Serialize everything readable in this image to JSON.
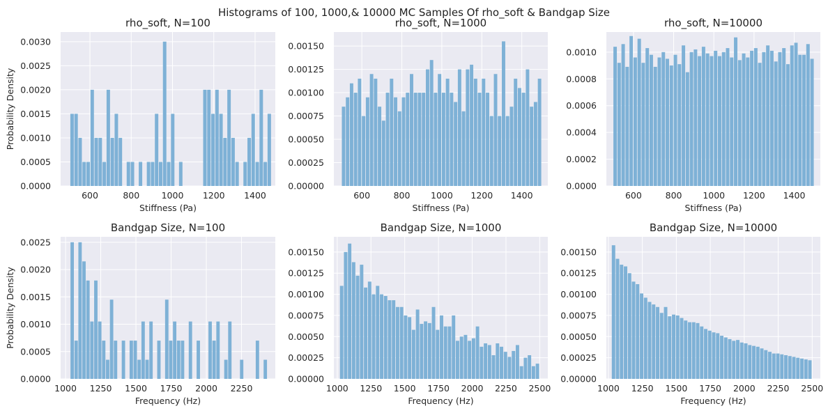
{
  "figure": {
    "title": "Histograms of 100, 1000,& 10000 MC Samples Of rho_soft & Bandgap Size",
    "background": "#ffffff",
    "axes_background": "#eaeaf2",
    "grid_color": "#ffffff",
    "bar_color": "#7eb1d6"
  },
  "chart_data": [
    {
      "type": "bar",
      "title": "rho_soft, N=100",
      "xlabel": "Stiffness (Pa)",
      "ylabel": "Probability Density",
      "xlim": [
        458,
        1498
      ],
      "ylim": [
        0,
        0.0032
      ],
      "xticks": [
        600,
        800,
        1000,
        1200,
        1400
      ],
      "yticks": [
        0,
        0.0005,
        0.001,
        0.0015,
        0.002,
        0.0025,
        0.003
      ],
      "ytick_labels": [
        "0.0000",
        "0.0005",
        "0.0010",
        "0.0015",
        "0.0020",
        "0.0025",
        "0.0030"
      ],
      "grid": true,
      "bin_start": 505,
      "bin_width": 19.5,
      "values": [
        0.0015,
        0.0015,
        0.001,
        0.0005,
        0.0005,
        0.002,
        0.001,
        0.001,
        0.0005,
        0.002,
        0.001,
        0.0015,
        0.001,
        0,
        0.0005,
        0.0005,
        0,
        0.0005,
        0,
        0.0005,
        0.0005,
        0.0015,
        0.0005,
        0.003,
        0.0005,
        0.0015,
        0,
        0.0005,
        0,
        0,
        0,
        0,
        0,
        0.002,
        0.002,
        0.0015,
        0.002,
        0.0015,
        0.001,
        0.002,
        0.001,
        0.0005,
        0,
        0.0005,
        0.001,
        0.0015,
        0.0005,
        0.002,
        0.0005,
        0.0015
      ]
    },
    {
      "type": "bar",
      "title": "rho_soft, N=1000",
      "xlabel": "Stiffness (Pa)",
      "ylabel": "",
      "xlim": [
        460,
        1530
      ],
      "ylim": [
        0,
        0.00165
      ],
      "xticks": [
        600,
        800,
        1000,
        1200,
        1400
      ],
      "yticks": [
        0,
        0.00025,
        0.0005,
        0.00075,
        0.001,
        0.00125,
        0.0015
      ],
      "ytick_labels": [
        "0.00000",
        "0.00025",
        "0.00050",
        "0.00075",
        "0.00100",
        "0.00125",
        "0.00150"
      ],
      "grid": true,
      "bin_start": 500,
      "bin_width": 20,
      "values": [
        0.00085,
        0.00095,
        0.0011,
        0.001,
        0.00115,
        0.00075,
        0.00095,
        0.0012,
        0.00115,
        0.00085,
        0.0007,
        0.001,
        0.00115,
        0.00095,
        0.0008,
        0.00095,
        0.001,
        0.0012,
        0.001,
        0.001,
        0.001,
        0.00125,
        0.00135,
        0.001,
        0.0012,
        0.001,
        0.00115,
        0.001,
        0.0009,
        0.00125,
        0.0008,
        0.00125,
        0.0013,
        0.00115,
        0.001,
        0.00115,
        0.001,
        0.00075,
        0.0012,
        0.00075,
        0.00155,
        0.00075,
        0.00085,
        0.00115,
        0.00105,
        0.001,
        0.00125,
        0.00085,
        0.0009,
        0.00115
      ]
    },
    {
      "type": "bar",
      "title": "rho_soft, N=10000",
      "xlabel": "Stiffness (Pa)",
      "ylabel": "",
      "xlim": [
        465,
        1530
      ],
      "ylim": [
        0,
        0.00115
      ],
      "xticks": [
        600,
        800,
        1000,
        1200,
        1400
      ],
      "yticks": [
        0,
        0.0002,
        0.0004,
        0.0006,
        0.0008,
        0.001
      ],
      "ytick_labels": [
        "0.0000",
        "0.0002",
        "0.0004",
        "0.0006",
        "0.0008",
        "0.0010"
      ],
      "grid": true,
      "bin_start": 500,
      "bin_width": 20,
      "values": [
        0.00104,
        0.00092,
        0.00106,
        0.00089,
        0.00112,
        0.00096,
        0.0011,
        0.00092,
        0.00103,
        0.00098,
        0.00089,
        0.00096,
        0.001,
        0.00095,
        0.0009,
        0.00098,
        0.00091,
        0.00105,
        0.00085,
        0.001,
        0.00102,
        0.00097,
        0.00104,
        0.00099,
        0.00097,
        0.00101,
        0.00097,
        0.001,
        0.00103,
        0.00096,
        0.00111,
        0.00094,
        0.00099,
        0.00096,
        0.00101,
        0.00103,
        0.00092,
        0.001,
        0.00105,
        0.00101,
        0.00093,
        0.001,
        0.00103,
        0.00091,
        0.00105,
        0.00107,
        0.00098,
        0.00098,
        0.00106,
        0.00095
      ]
    },
    {
      "type": "bar",
      "title": "Bandgap Size, N=100",
      "xlabel": "Frequency (Hz)",
      "ylabel": "Probability Density",
      "xlim": [
        965,
        2490
      ],
      "ylim": [
        0,
        0.0026
      ],
      "xticks": [
        1000,
        1250,
        1500,
        1750,
        2000,
        2250
      ],
      "yticks": [
        0,
        0.0005,
        0.001,
        0.0015,
        0.002,
        0.0025
      ],
      "ytick_labels": [
        "0.0000",
        "0.0005",
        "0.0010",
        "0.0015",
        "0.0020",
        "0.0025"
      ],
      "grid": true,
      "bin_start": 1035,
      "bin_width": 28,
      "values": [
        0.0025,
        0.0007,
        0.0025,
        0.00215,
        0.0018,
        0.00105,
        0.0018,
        0.00105,
        0.0007,
        0.00035,
        0.00145,
        0.0007,
        0,
        0.0007,
        0,
        0.0007,
        0.0007,
        0.00035,
        0.00105,
        0.00035,
        0.00105,
        0,
        0.0007,
        0,
        0.00145,
        0.0007,
        0.00105,
        0.0007,
        0.0007,
        0,
        0.00105,
        0,
        0.0007,
        0,
        0,
        0.00105,
        0.0007,
        0.00105,
        0,
        0.00035,
        0.00105,
        0,
        0,
        0.00035,
        0,
        0,
        0,
        0.0007,
        0,
        0.00035
      ]
    },
    {
      "type": "bar",
      "title": "Bandgap Size, N=1000",
      "xlabel": "Frequency (Hz)",
      "ylabel": "",
      "xlim": [
        975,
        2560
      ],
      "ylim": [
        0,
        0.00168
      ],
      "xticks": [
        1000,
        1250,
        1500,
        1750,
        2000,
        2250,
        2500
      ],
      "yticks": [
        0,
        0.00025,
        0.0005,
        0.00075,
        0.001,
        0.00125,
        0.0015
      ],
      "ytick_labels": [
        "0.00000",
        "0.00025",
        "0.00050",
        "0.00075",
        "0.00100",
        "0.00125",
        "0.00150"
      ],
      "grid": true,
      "bin_start": 1020,
      "bin_width": 29.6,
      "values": [
        0.0011,
        0.0015,
        0.0016,
        0.00138,
        0.00122,
        0.00135,
        0.00108,
        0.00115,
        0.001,
        0.0011,
        0.001,
        0.00098,
        0.00093,
        0.00093,
        0.00085,
        0.00085,
        0.00075,
        0.00073,
        0.00058,
        0.00082,
        0.00065,
        0.00068,
        0.00066,
        0.00085,
        0.00058,
        0.00075,
        0.00062,
        0.00062,
        0.00075,
        0.00045,
        0.0005,
        0.00052,
        0.00045,
        0.00048,
        0.00062,
        0.00038,
        0.00042,
        0.0004,
        0.00028,
        0.00042,
        0.00038,
        0.00032,
        0.00026,
        0.00033,
        0.0004,
        0.00015,
        0.00025,
        0.00028,
        0.00015,
        0.00018
      ]
    },
    {
      "type": "bar",
      "title": "Bandgap Size, N=10000",
      "xlabel": "Frequency (Hz)",
      "ylabel": "",
      "xlim": [
        985,
        2560
      ],
      "ylim": [
        0,
        0.00168
      ],
      "xticks": [
        1000,
        1250,
        1500,
        1750,
        2000,
        2250,
        2500
      ],
      "yticks": [
        0,
        0.00025,
        0.0005,
        0.00075,
        0.001,
        0.00125,
        0.0015
      ],
      "ytick_labels": [
        "0.00000",
        "0.00025",
        "0.00050",
        "0.00075",
        "0.00100",
        "0.00125",
        "0.00150"
      ],
      "grid": true,
      "bin_start": 1025,
      "bin_width": 29.5,
      "values": [
        0.00158,
        0.00142,
        0.00135,
        0.00133,
        0.00125,
        0.00115,
        0.00112,
        0.00101,
        0.00096,
        0.00091,
        0.00088,
        0.00085,
        0.00078,
        0.00085,
        0.00074,
        0.00076,
        0.00075,
        0.00072,
        0.00069,
        0.00067,
        0.00067,
        0.00066,
        0.00062,
        0.00059,
        0.00057,
        0.00055,
        0.00054,
        0.00051,
        0.00049,
        0.00047,
        0.00045,
        0.00046,
        0.00043,
        0.00042,
        0.0004,
        0.00039,
        0.00038,
        0.00036,
        0.00034,
        0.00032,
        0.0003,
        0.0003,
        0.00029,
        0.00028,
        0.00027,
        0.00026,
        0.00025,
        0.00024,
        0.00023,
        0.00022
      ]
    }
  ]
}
